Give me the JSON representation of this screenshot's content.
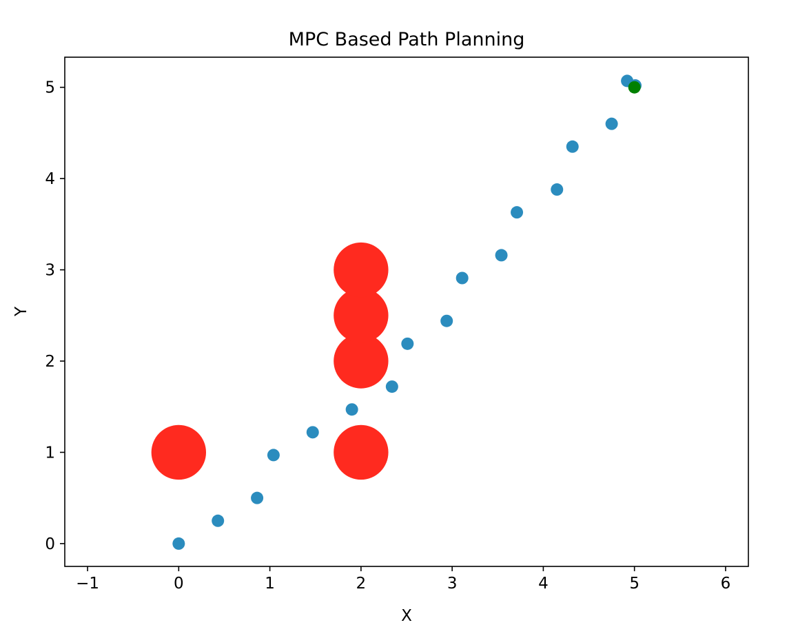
{
  "chart_data": {
    "type": "scatter",
    "title": "MPC Based Path Planning",
    "xlabel": "X",
    "ylabel": "Y",
    "xlim": [
      -1.25,
      6.25
    ],
    "ylim": [
      -0.25,
      5.33
    ],
    "xticks": [
      -1,
      0,
      1,
      2,
      3,
      4,
      5,
      6
    ],
    "xtick_labels": [
      "−1",
      "0",
      "1",
      "2",
      "3",
      "4",
      "5",
      "6"
    ],
    "yticks": [
      0,
      1,
      2,
      3,
      4,
      5
    ],
    "ytick_labels": [
      "0",
      "1",
      "2",
      "3",
      "4",
      "5"
    ],
    "grid": false,
    "legend": "none",
    "series": [
      {
        "role": "obstacles",
        "color": "#ff2a1f",
        "radius": 0.3,
        "points": [
          {
            "x": 0,
            "y": 1
          },
          {
            "x": 2,
            "y": 1
          },
          {
            "x": 2,
            "y": 2
          },
          {
            "x": 2,
            "y": 2.5
          },
          {
            "x": 2,
            "y": 3
          }
        ]
      },
      {
        "role": "path",
        "color": "#2b8cbe",
        "points": [
          {
            "x": 0.0,
            "y": 0.0
          },
          {
            "x": 0.43,
            "y": 0.25
          },
          {
            "x": 0.86,
            "y": 0.5
          },
          {
            "x": 1.04,
            "y": 0.97
          },
          {
            "x": 1.47,
            "y": 1.22
          },
          {
            "x": 1.9,
            "y": 1.47
          },
          {
            "x": 2.34,
            "y": 1.72
          },
          {
            "x": 2.51,
            "y": 2.19
          },
          {
            "x": 2.94,
            "y": 2.44
          },
          {
            "x": 3.11,
            "y": 2.91
          },
          {
            "x": 3.54,
            "y": 3.16
          },
          {
            "x": 3.71,
            "y": 3.63
          },
          {
            "x": 4.15,
            "y": 3.88
          },
          {
            "x": 4.32,
            "y": 4.35
          },
          {
            "x": 4.75,
            "y": 4.6
          },
          {
            "x": 4.92,
            "y": 5.07
          },
          {
            "x": 5.01,
            "y": 5.02
          }
        ]
      },
      {
        "role": "goal",
        "color": "#008000",
        "points": [
          {
            "x": 5.0,
            "y": 5.0
          }
        ]
      }
    ]
  }
}
